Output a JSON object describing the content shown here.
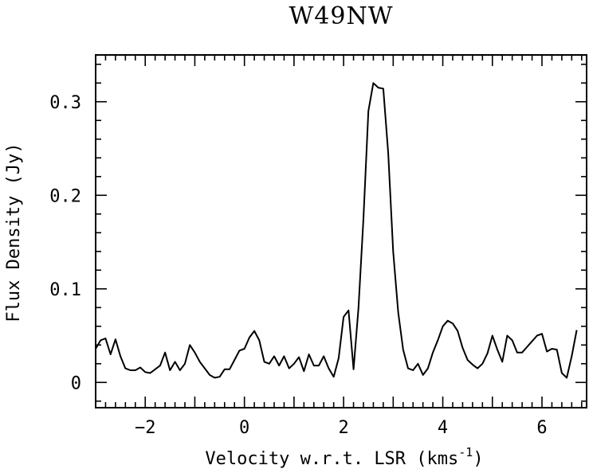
{
  "chart_data": {
    "type": "line",
    "title": "W49NW",
    "xlabel": "Velocity w.r.t. LSR (kms",
    "xlabel_sup": "-1",
    "xlabel_end": ")",
    "ylabel": "Flux Density (Jy)",
    "xlim": [
      -3.0,
      6.9
    ],
    "ylim": [
      -0.027,
      0.35
    ],
    "x_ticks": [
      -2,
      0,
      2,
      4,
      6
    ],
    "x_tick_labels": [
      "−2",
      "0",
      "2",
      "4",
      "6"
    ],
    "y_ticks": [
      0,
      0.1,
      0.2,
      0.3
    ],
    "y_tick_labels": [
      "0",
      "0.1",
      "0.2",
      "0.3"
    ],
    "grid": false,
    "series": [
      {
        "x": [
          -3.0,
          -2.9,
          -2.8,
          -2.7,
          -2.6,
          -2.5,
          -2.4,
          -2.3,
          -2.2,
          -2.1,
          -2.0,
          -1.9,
          -1.8,
          -1.7,
          -1.6,
          -1.5,
          -1.4,
          -1.3,
          -1.2,
          -1.1,
          -1.0,
          -0.9,
          -0.8,
          -0.7,
          -0.6,
          -0.5,
          -0.4,
          -0.3,
          -0.2,
          -0.1,
          0.0,
          0.1,
          0.2,
          0.3,
          0.4,
          0.5,
          0.6,
          0.7,
          0.8,
          0.9,
          1.0,
          1.1,
          1.2,
          1.3,
          1.4,
          1.5,
          1.6,
          1.7,
          1.8,
          1.9,
          2.0,
          2.1,
          2.2,
          2.3,
          2.4,
          2.5,
          2.6,
          2.7,
          2.8,
          2.9,
          3.0,
          3.1,
          3.2,
          3.3,
          3.4,
          3.5,
          3.6,
          3.7,
          3.8,
          3.9,
          4.0,
          4.1,
          4.2,
          4.3,
          4.4,
          4.5,
          4.6,
          4.7,
          4.8,
          4.9,
          5.0,
          5.1,
          5.2,
          5.3,
          5.4,
          5.5,
          5.6,
          5.7,
          5.8,
          5.9,
          6.0,
          6.1,
          6.2,
          6.3,
          6.4,
          6.5,
          6.6,
          6.7
        ],
        "y": [
          0.036,
          0.045,
          0.047,
          0.03,
          0.046,
          0.028,
          0.015,
          0.013,
          0.013,
          0.016,
          0.011,
          0.01,
          0.014,
          0.018,
          0.032,
          0.013,
          0.022,
          0.013,
          0.02,
          0.04,
          0.032,
          0.022,
          0.015,
          0.008,
          0.005,
          0.006,
          0.014,
          0.014,
          0.024,
          0.034,
          0.036,
          0.048,
          0.055,
          0.045,
          0.022,
          0.02,
          0.028,
          0.018,
          0.028,
          0.015,
          0.02,
          0.027,
          0.012,
          0.03,
          0.018,
          0.018,
          0.028,
          0.015,
          0.006,
          0.026,
          0.07,
          0.077,
          0.014,
          0.08,
          0.175,
          0.29,
          0.32,
          0.315,
          0.314,
          0.245,
          0.14,
          0.075,
          0.035,
          0.015,
          0.013,
          0.02,
          0.008,
          0.015,
          0.032,
          0.045,
          0.06,
          0.066,
          0.063,
          0.055,
          0.037,
          0.024,
          0.019,
          0.015,
          0.02,
          0.031,
          0.05,
          0.035,
          0.022,
          0.05,
          0.045,
          0.032,
          0.032,
          0.038,
          0.044,
          0.05,
          0.052,
          0.033,
          0.036,
          0.035,
          0.01,
          0.005,
          0.028,
          0.056
        ]
      }
    ]
  }
}
